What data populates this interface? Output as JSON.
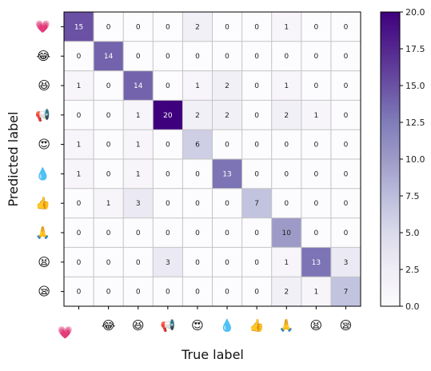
{
  "chart_data": {
    "type": "heatmap",
    "xlabel": "True label",
    "ylabel": "Predicted label",
    "row_labels": [
      "💗",
      "😂",
      "😆",
      "📢",
      "😍",
      "💧",
      "👍",
      "🙏",
      "😫",
      "😪"
    ],
    "col_labels": [
      "💗",
      "😂",
      "😆",
      "📢",
      "😍",
      "💧",
      "👍",
      "🙏",
      "😫",
      "😪"
    ],
    "matrix": [
      [
        15,
        0,
        0,
        0,
        2,
        0,
        0,
        1,
        0,
        0
      ],
      [
        0,
        14,
        0,
        0,
        0,
        0,
        0,
        0,
        0,
        0
      ],
      [
        1,
        0,
        14,
        0,
        1,
        2,
        0,
        1,
        0,
        0
      ],
      [
        0,
        0,
        1,
        20,
        2,
        2,
        0,
        2,
        1,
        0
      ],
      [
        1,
        0,
        1,
        0,
        6,
        0,
        0,
        0,
        0,
        0
      ],
      [
        1,
        0,
        1,
        0,
        0,
        13,
        0,
        0,
        0,
        0
      ],
      [
        0,
        1,
        3,
        0,
        0,
        0,
        7,
        0,
        0,
        0
      ],
      [
        0,
        0,
        0,
        0,
        0,
        0,
        0,
        10,
        0,
        0
      ],
      [
        0,
        0,
        0,
        3,
        0,
        0,
        0,
        1,
        13,
        3
      ],
      [
        0,
        0,
        0,
        0,
        0,
        0,
        0,
        2,
        1,
        7
      ]
    ],
    "colorbar": {
      "min": 0.0,
      "max": 20.0,
      "ticks": [
        "0.0",
        "2.5",
        "5.0",
        "7.5",
        "10.0",
        "12.5",
        "15.0",
        "17.5",
        "20.0"
      ],
      "colormap": "Purples",
      "color_low": "#fcfbfd",
      "color_high": "#3f007d"
    }
  }
}
